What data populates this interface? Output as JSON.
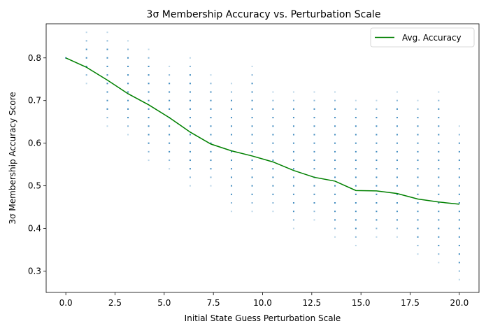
{
  "chart_data": {
    "type": "scatter",
    "title": "3σ Membership Accuracy vs. Perturbation Scale",
    "xlabel": "Initial State Guess Perturbation Scale",
    "ylabel": "3σ Membership Accuracy Score",
    "xlim": [
      -1.0,
      21.0
    ],
    "ylim": [
      0.25,
      0.88
    ],
    "xticks": [
      0.0,
      2.5,
      5.0,
      7.5,
      10.0,
      12.5,
      15.0,
      17.5,
      20.0
    ],
    "xtick_labels": [
      "0.0",
      "2.5",
      "5.0",
      "7.5",
      "10.0",
      "12.5",
      "15.0",
      "17.5",
      "20.0"
    ],
    "yticks": [
      0.3,
      0.4,
      0.5,
      0.6,
      0.7,
      0.8
    ],
    "ytick_labels": [
      "0.3",
      "0.4",
      "0.5",
      "0.6",
      "0.7",
      "0.8"
    ],
    "grid": false,
    "legend": {
      "placement": "top-right",
      "entries": [
        "Avg. Accuracy"
      ]
    },
    "colors": {
      "scatter": "#1f77b4",
      "line": "#008000",
      "axes": "#000000"
    },
    "scatter_point_spacing": 0.02,
    "series": [
      {
        "name": "Avg. Accuracy",
        "kind": "line",
        "x": [
          0.0,
          1.05,
          2.11,
          3.16,
          4.21,
          5.26,
          6.32,
          7.37,
          8.42,
          9.47,
          10.53,
          11.58,
          12.63,
          13.68,
          14.74,
          15.79,
          16.84,
          17.89,
          18.95,
          20.0
        ],
        "y": [
          0.8,
          0.778,
          0.748,
          0.716,
          0.69,
          0.66,
          0.626,
          0.598,
          0.582,
          0.57,
          0.556,
          0.536,
          0.52,
          0.511,
          0.489,
          0.488,
          0.482,
          0.469,
          0.462,
          0.457
        ]
      },
      {
        "name": "",
        "kind": "scatter",
        "columns": [
          {
            "x": 0.0,
            "y_min": 0.8,
            "y_max": 0.8
          },
          {
            "x": 1.05,
            "y_min": 0.74,
            "y_max": 0.86
          },
          {
            "x": 2.11,
            "y_min": 0.64,
            "y_max": 0.86
          },
          {
            "x": 3.16,
            "y_min": 0.62,
            "y_max": 0.84
          },
          {
            "x": 4.21,
            "y_min": 0.56,
            "y_max": 0.82
          },
          {
            "x": 5.26,
            "y_min": 0.54,
            "y_max": 0.78
          },
          {
            "x": 6.32,
            "y_min": 0.5,
            "y_max": 0.8
          },
          {
            "x": 7.37,
            "y_min": 0.5,
            "y_max": 0.76
          },
          {
            "x": 8.42,
            "y_min": 0.44,
            "y_max": 0.74
          },
          {
            "x": 9.47,
            "y_min": 0.44,
            "y_max": 0.78
          },
          {
            "x": 10.53,
            "y_min": 0.44,
            "y_max": 0.72
          },
          {
            "x": 11.58,
            "y_min": 0.4,
            "y_max": 0.72
          },
          {
            "x": 12.63,
            "y_min": 0.42,
            "y_max": 0.72
          },
          {
            "x": 13.68,
            "y_min": 0.38,
            "y_max": 0.72
          },
          {
            "x": 14.74,
            "y_min": 0.36,
            "y_max": 0.7
          },
          {
            "x": 15.79,
            "y_min": 0.38,
            "y_max": 0.7
          },
          {
            "x": 16.84,
            "y_min": 0.38,
            "y_max": 0.72
          },
          {
            "x": 17.89,
            "y_min": 0.34,
            "y_max": 0.7
          },
          {
            "x": 18.95,
            "y_min": 0.32,
            "y_max": 0.72
          },
          {
            "x": 20.0,
            "y_min": 0.28,
            "y_max": 0.64
          }
        ]
      }
    ]
  }
}
